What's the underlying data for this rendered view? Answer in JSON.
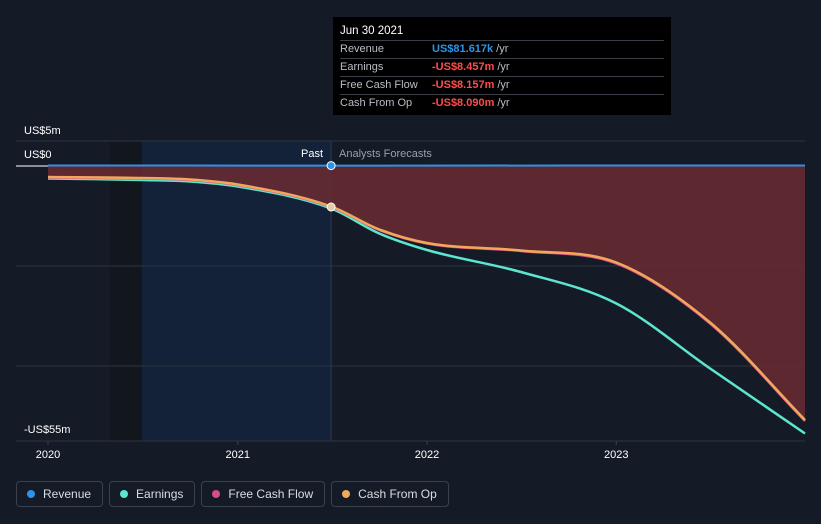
{
  "chart_data": {
    "type": "area",
    "title": "",
    "xlabel": "",
    "ylabel": "",
    "y_unit": "US$ millions",
    "x_ticks": [
      "2020",
      "2021",
      "2022",
      "2023"
    ],
    "y_labels": {
      "top": "US$5m",
      "zero": "US$0",
      "bottom": "-US$55m"
    },
    "ylim": [
      -55,
      5
    ],
    "xlim": [
      "2020-01-01",
      "2023-12-31"
    ],
    "grid": true,
    "past_label": "Past",
    "forecast_label": "Analysts Forecasts",
    "past_end": "2021-06-30",
    "series": [
      {
        "name": "Revenue",
        "color": "#2e93e6",
        "x": [
          "2020-01-01",
          "2021-06-30",
          "2023-12-31"
        ],
        "y": [
          0.1,
          0.08,
          0.1
        ]
      },
      {
        "name": "Earnings",
        "color": "#5ce6cf",
        "x": [
          "2020-01-01",
          "2020-07-01",
          "2020-10-01",
          "2021-01-01",
          "2021-06-30",
          "2021-10-01",
          "2022-01-01",
          "2022-07-01",
          "2023-01-01",
          "2023-07-01",
          "2023-12-31"
        ],
        "y": [
          -2.5,
          -2.8,
          -3.1,
          -4.1,
          -8.5,
          -13.5,
          -16.8,
          -21.2,
          -27.5,
          -40.5,
          -53.5
        ]
      },
      {
        "name": "Free Cash Flow",
        "color": "#d94c8c",
        "x": [
          "2020-01-01",
          "2020-07-01",
          "2020-10-01",
          "2021-01-01",
          "2021-06-30",
          "2021-10-01",
          "2022-01-01",
          "2022-07-01",
          "2023-01-01",
          "2023-07-01",
          "2023-12-31"
        ],
        "y": [
          -2.3,
          -2.5,
          -2.8,
          -3.8,
          -8.2,
          -12.8,
          -15.5,
          -17.0,
          -19.5,
          -31.5,
          -51.0
        ]
      },
      {
        "name": "Cash From Op",
        "color": "#f0a85a",
        "x": [
          "2020-01-01",
          "2020-07-01",
          "2020-10-01",
          "2021-01-01",
          "2021-06-30",
          "2021-10-01",
          "2022-01-01",
          "2022-07-01",
          "2023-01-01",
          "2023-07-01",
          "2023-12-31"
        ],
        "y": [
          -2.2,
          -2.4,
          -2.7,
          -3.7,
          -8.1,
          -12.7,
          -15.4,
          -16.9,
          -19.3,
          -31.3,
          -50.8
        ]
      }
    ]
  },
  "tooltip": {
    "date": "Jun 30 2021",
    "rows": [
      {
        "label": "Revenue",
        "value": "US$81.617k",
        "unit": "/yr",
        "color": "#2e93e6"
      },
      {
        "label": "Earnings",
        "value": "-US$8.457m",
        "unit": "/yr",
        "color": "#ff4d4d"
      },
      {
        "label": "Free Cash Flow",
        "value": "-US$8.157m",
        "unit": "/yr",
        "color": "#ff4d4d"
      },
      {
        "label": "Cash From Op",
        "value": "-US$8.090m",
        "unit": "/yr",
        "color": "#ff4d4d"
      }
    ]
  },
  "legend": [
    {
      "label": "Revenue",
      "color": "#2e93e6"
    },
    {
      "label": "Earnings",
      "color": "#5ce6cf"
    },
    {
      "label": "Free Cash Flow",
      "color": "#d94c8c"
    },
    {
      "label": "Cash From Op",
      "color": "#f0a85a"
    }
  ]
}
